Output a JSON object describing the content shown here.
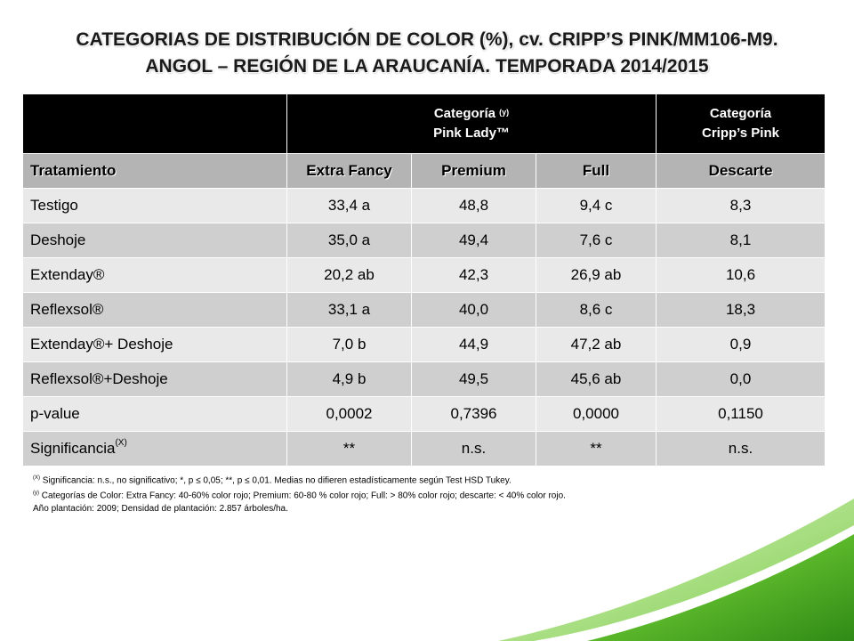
{
  "title": {
    "line1": "CATEGORIAS DE DISTRIBUCIÓN DE COLOR (%), cv. CRIPP’S PINK/MM106-M9.",
    "line2": "ANGOL – REGIÓN DE LA ARAUCANÍA. TEMPORADA 2014/2015"
  },
  "table": {
    "group1": {
      "label": "Categoría",
      "mark": "(y)",
      "sub": "Pink Lady™"
    },
    "group2": {
      "label": "Categoría",
      "sub": "Cripp’s Pink"
    },
    "columns": [
      "Tratamiento",
      "Extra Fancy",
      "Premium",
      "Full",
      "Descarte"
    ],
    "rows": [
      {
        "name": "Testigo",
        "extra_fancy": "33,4 a",
        "premium": "48,8",
        "full": "9,4 c",
        "descarte": "8,3"
      },
      {
        "name": "Deshoje",
        "extra_fancy": "35,0 a",
        "premium": "49,4",
        "full": "7,6 c",
        "descarte": "8,1"
      },
      {
        "name": "Extenday®",
        "extra_fancy": "20,2 ab",
        "premium": "42,3",
        "full": "26,9 ab",
        "descarte": "10,6"
      },
      {
        "name": "Reflexsol®",
        "extra_fancy": "33,1 a",
        "premium": "40,0",
        "full": "8,6 c",
        "descarte": "18,3"
      },
      {
        "name": "Extenday®+ Deshoje",
        "extra_fancy": "7,0 b",
        "premium": "44,9",
        "full": "47,2 ab",
        "descarte": "0,9"
      },
      {
        "name": "Reflexsol®+Deshoje",
        "extra_fancy": "4,9 b",
        "premium": "49,5",
        "full": "45,6 ab",
        "descarte": "0,0"
      },
      {
        "name": "p-value",
        "extra_fancy": "0,0002",
        "premium": "0,7396",
        "full": "0,0000",
        "descarte": "0,1150"
      }
    ],
    "significance": {
      "name": "Significancia",
      "mark": "(X)",
      "extra_fancy": "**",
      "premium": "n.s.",
      "full": "**",
      "descarte": "n.s."
    }
  },
  "footnotes": {
    "note_x_mark": "(X)",
    "note_x": "Significancia: n.s., no significativo; *, p ≤ 0,05; **, p ≤ 0,01. Medias no difieren estadísticamente según Test HSD Tukey.",
    "note_y_mark": "(y)",
    "note_y": "Categorías de Color: Extra Fancy: 40-60% color rojo; Premium: 60-80 % color rojo; Full: > 80% color rojo; descarte: < 40% color rojo.",
    "note_3": "Año plantación: 2009; Densidad de plantación: 2.857 árboles/ha."
  },
  "colors": {
    "header_bg": "#000000",
    "subheader_bg": "#b4b4b4",
    "row_light": "#e9e9e9",
    "row_dark": "#cfcfcf",
    "accent_green": "#5cb82a"
  }
}
